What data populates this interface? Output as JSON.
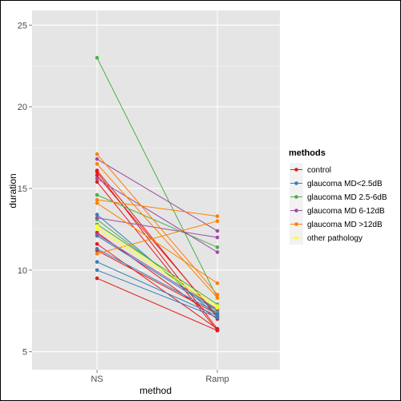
{
  "chart_data": {
    "type": "line",
    "xlabel": "method",
    "ylabel": "duration",
    "categories": [
      "NS",
      "Ramp"
    ],
    "ylim": [
      3.9,
      25.9
    ],
    "yticks": [
      5,
      10,
      15,
      20,
      25
    ],
    "grid": true,
    "legend": {
      "title": "methods",
      "position": "right",
      "entries": [
        {
          "name": "control",
          "color": "#e41a1c"
        },
        {
          "name": "glaucoma MD<2.5dB",
          "color": "#377eb8"
        },
        {
          "name": "glaucoma MD 2.5-6dB",
          "color": "#4daf4a"
        },
        {
          "name": "glaucoma MD 6-12dB",
          "color": "#984ea3"
        },
        {
          "name": "glaucoma MD >12dB",
          "color": "#ff7f00"
        },
        {
          "name": "other pathology",
          "color": "#ffff33"
        }
      ]
    },
    "series": [
      {
        "group": "control",
        "color": "#e41a1c",
        "values": [
          9.5,
          6.3
        ]
      },
      {
        "group": "control",
        "color": "#e41a1c",
        "values": [
          11.6,
          6.4
        ]
      },
      {
        "group": "control",
        "color": "#e41a1c",
        "values": [
          15.4,
          6.3
        ]
      },
      {
        "group": "control",
        "color": "#e41a1c",
        "values": [
          15.8,
          7.2
        ]
      },
      {
        "group": "control",
        "color": "#e41a1c",
        "values": [
          16.0,
          6.4
        ]
      },
      {
        "group": "control",
        "color": "#e41a1c",
        "values": [
          16.1,
          7.1
        ]
      },
      {
        "group": "control",
        "color": "#e41a1c",
        "values": [
          12.3,
          7.0
        ]
      },
      {
        "group": "control",
        "color": "#e41a1c",
        "values": [
          11.2,
          7.3
        ]
      },
      {
        "group": "glaucoma MD<2.5dB",
        "color": "#377eb8",
        "values": [
          10.0,
          7.1
        ]
      },
      {
        "group": "glaucoma MD<2.5dB",
        "color": "#377eb8",
        "values": [
          10.5,
          7.2
        ]
      },
      {
        "group": "glaucoma MD<2.5dB",
        "color": "#377eb8",
        "values": [
          11.3,
          7.4
        ]
      },
      {
        "group": "glaucoma MD<2.5dB",
        "color": "#377eb8",
        "values": [
          13.4,
          7.2
        ]
      },
      {
        "group": "glaucoma MD<2.5dB",
        "color": "#377eb8",
        "values": [
          12.1,
          7.5
        ]
      },
      {
        "group": "glaucoma MD 2.5-6dB",
        "color": "#4daf4a",
        "values": [
          23.0,
          8.3
        ]
      },
      {
        "group": "glaucoma MD 2.5-6dB",
        "color": "#4daf4a",
        "values": [
          14.6,
          11.4
        ]
      },
      {
        "group": "glaucoma MD 2.5-6dB",
        "color": "#4daf4a",
        "values": [
          13.1,
          7.5
        ]
      },
      {
        "group": "glaucoma MD 2.5-6dB",
        "color": "#4daf4a",
        "values": [
          12.8,
          7.9
        ]
      },
      {
        "group": "glaucoma MD 6-12dB",
        "color": "#984ea3",
        "values": [
          16.8,
          12.4
        ]
      },
      {
        "group": "glaucoma MD 6-12dB",
        "color": "#984ea3",
        "values": [
          15.6,
          11.1
        ]
      },
      {
        "group": "glaucoma MD 6-12dB",
        "color": "#984ea3",
        "values": [
          13.2,
          12.0
        ]
      },
      {
        "group": "glaucoma MD 6-12dB",
        "color": "#984ea3",
        "values": [
          12.2,
          7.6
        ]
      },
      {
        "group": "glaucoma MD >12dB",
        "color": "#ff7f00",
        "values": [
          17.1,
          8.5
        ]
      },
      {
        "group": "glaucoma MD >12dB",
        "color": "#ff7f00",
        "values": [
          14.3,
          13.3
        ]
      },
      {
        "group": "glaucoma MD >12dB",
        "color": "#ff7f00",
        "values": [
          14.1,
          9.2
        ]
      },
      {
        "group": "glaucoma MD >12dB",
        "color": "#ff7f00",
        "values": [
          11.0,
          13.0
        ]
      },
      {
        "group": "glaucoma MD >12dB",
        "color": "#ff7f00",
        "values": [
          16.5,
          8.3
        ]
      },
      {
        "group": "other pathology",
        "color": "#ffff33",
        "values": [
          12.5,
          7.7
        ]
      },
      {
        "group": "other pathology",
        "color": "#ffff33",
        "values": [
          12.7,
          7.8
        ]
      }
    ]
  }
}
